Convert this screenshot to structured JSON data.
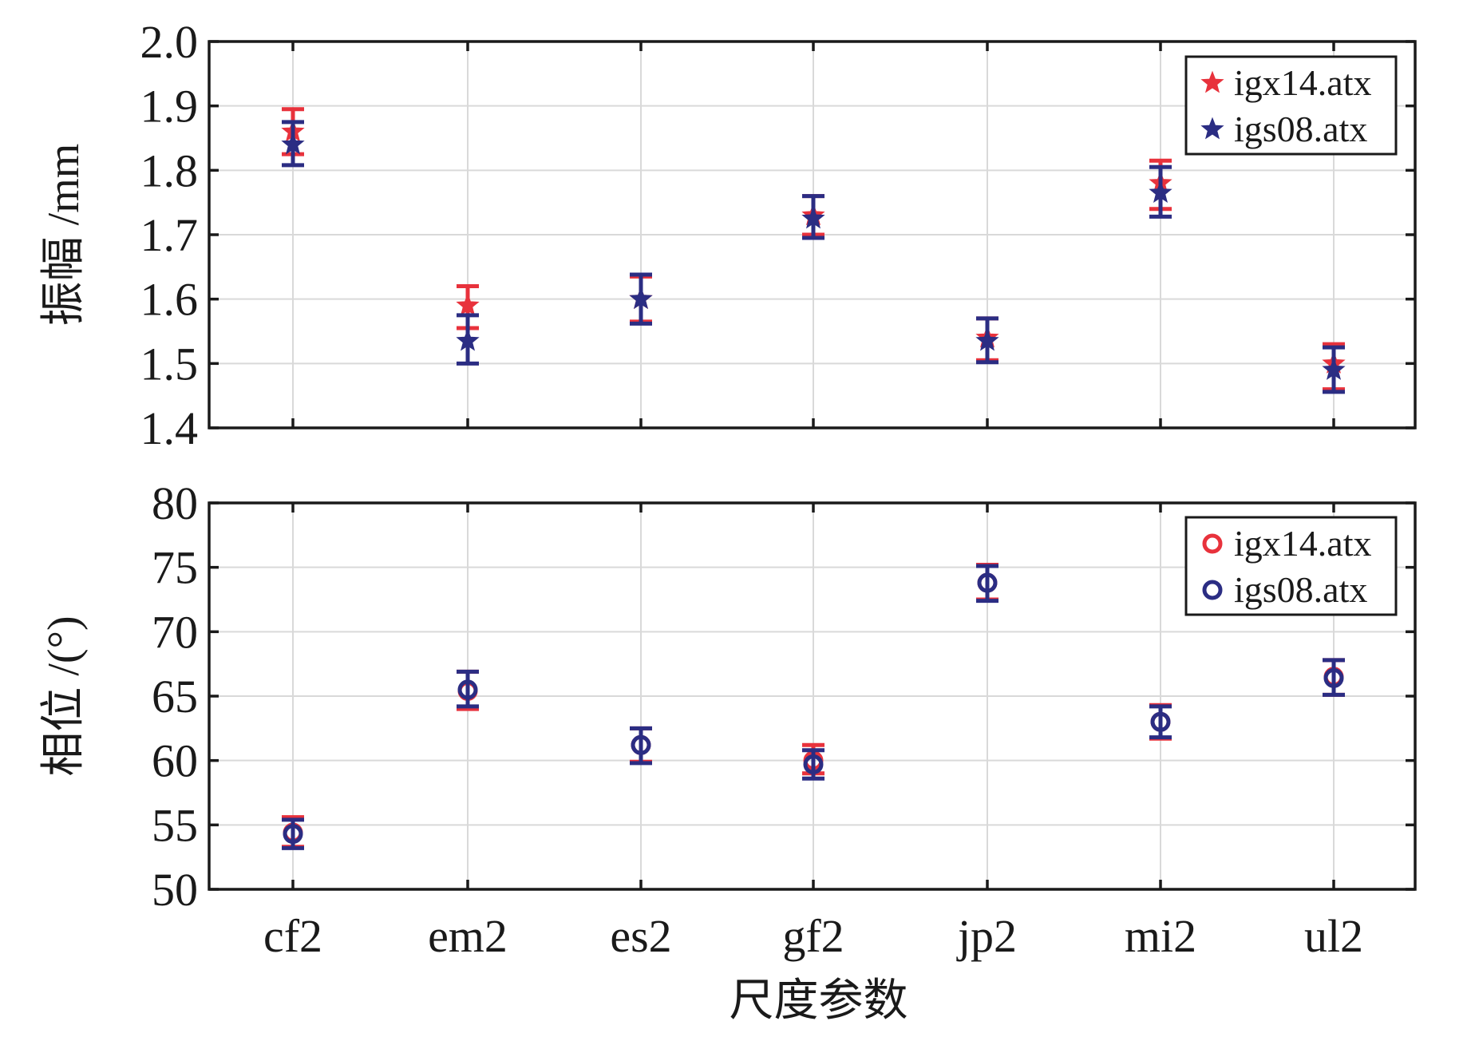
{
  "chart_data": [
    {
      "type": "scatter",
      "categories": [
        "cf2",
        "em2",
        "es2",
        "gf2",
        "jp2",
        "mi2",
        "ul2"
      ],
      "ylabel": "振幅 /mm",
      "ylim": [
        1.4,
        2.0
      ],
      "yticks": [
        "1.4",
        "1.5",
        "1.6",
        "1.7",
        "1.8",
        "1.9",
        "2.0"
      ],
      "grid": true,
      "legend": "top-right",
      "marker": "star",
      "series": [
        {
          "name": "igx14.atx",
          "color": "#e8323c",
          "values": [
            1.86,
            1.59,
            1.6,
            1.73,
            1.54,
            1.78,
            1.5
          ],
          "err_low": [
            1.825,
            1.555,
            1.565,
            1.7,
            1.505,
            1.74,
            1.46
          ],
          "err_high": [
            1.895,
            1.62,
            1.635,
            1.76,
            1.57,
            1.815,
            1.53
          ]
        },
        {
          "name": "igs08.atx",
          "color": "#2b2d83",
          "values": [
            1.84,
            1.535,
            1.6,
            1.725,
            1.535,
            1.765,
            1.49
          ],
          "err_low": [
            1.808,
            1.5,
            1.562,
            1.695,
            1.502,
            1.728,
            1.456
          ],
          "err_high": [
            1.875,
            1.575,
            1.638,
            1.76,
            1.57,
            1.805,
            1.525
          ]
        }
      ]
    },
    {
      "type": "scatter",
      "categories": [
        "cf2",
        "em2",
        "es2",
        "gf2",
        "jp2",
        "mi2",
        "ul2"
      ],
      "xlabel": "尺度参数",
      "ylabel": "相位 /(°)",
      "ylim": [
        50,
        80
      ],
      "yticks": [
        "50",
        "55",
        "60",
        "65",
        "70",
        "75",
        "80"
      ],
      "grid": true,
      "legend": "top-right",
      "marker": "circle",
      "series": [
        {
          "name": "igx14.atx",
          "color": "#e8323c",
          "values": [
            54.4,
            65.4,
            61.2,
            60.0,
            73.8,
            63.0,
            66.5
          ],
          "err_low": [
            53.3,
            64.0,
            59.9,
            59.0,
            72.5,
            61.7,
            65.1
          ],
          "err_high": [
            55.6,
            66.9,
            62.5,
            61.2,
            75.2,
            64.3,
            67.8
          ]
        },
        {
          "name": "igs08.atx",
          "color": "#2b2d83",
          "values": [
            54.3,
            65.5,
            61.2,
            59.7,
            73.8,
            63.0,
            66.4
          ],
          "err_low": [
            53.2,
            64.2,
            59.8,
            58.6,
            72.4,
            61.8,
            65.1
          ],
          "err_high": [
            55.4,
            66.9,
            62.5,
            60.8,
            75.1,
            64.2,
            67.8
          ]
        }
      ]
    }
  ]
}
